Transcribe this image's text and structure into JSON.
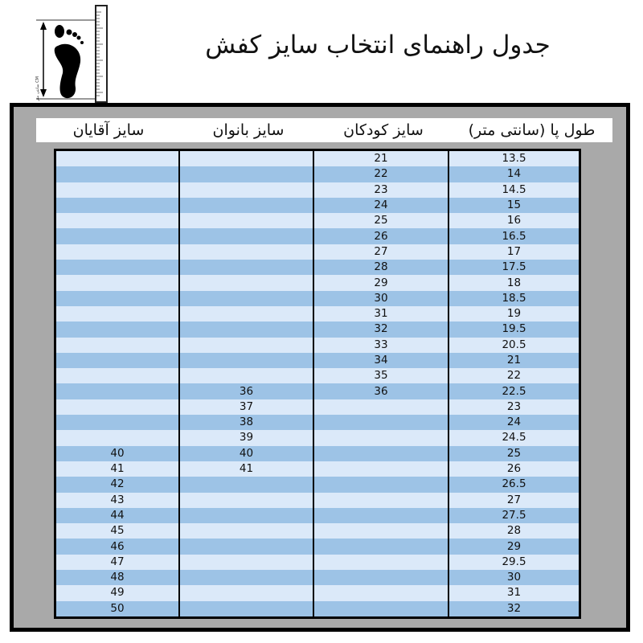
{
  "title": "جدول راهنمای انتخاب سایز کفش",
  "icon": {
    "name": "foot-ruler-icon",
    "label": "CM سانتی متر"
  },
  "colors": {
    "row_light": "#dbe9f9",
    "row_dark": "#9dc3e6",
    "frame": "#a9a9a9"
  },
  "headers": [
    "سایز آقایان",
    "سایز بانوان",
    "سایز کودکان",
    "طول پا (سانتی متر)"
  ],
  "rows": [
    [
      "",
      "",
      "21",
      "13.5"
    ],
    [
      "",
      "",
      "22",
      "14"
    ],
    [
      "",
      "",
      "23",
      "14.5"
    ],
    [
      "",
      "",
      "24",
      "15"
    ],
    [
      "",
      "",
      "25",
      "16"
    ],
    [
      "",
      "",
      "26",
      "16.5"
    ],
    [
      "",
      "",
      "27",
      "17"
    ],
    [
      "",
      "",
      "28",
      "17.5"
    ],
    [
      "",
      "",
      "29",
      "18"
    ],
    [
      "",
      "",
      "30",
      "18.5"
    ],
    [
      "",
      "",
      "31",
      "19"
    ],
    [
      "",
      "",
      "32",
      "19.5"
    ],
    [
      "",
      "",
      "33",
      "20.5"
    ],
    [
      "",
      "",
      "34",
      "21"
    ],
    [
      "",
      "",
      "35",
      "22"
    ],
    [
      "",
      "36",
      "36",
      "22.5"
    ],
    [
      "",
      "37",
      "",
      "23"
    ],
    [
      "",
      "38",
      "",
      "24"
    ],
    [
      "",
      "39",
      "",
      "24.5"
    ],
    [
      "40",
      "40",
      "",
      "25"
    ],
    [
      "41",
      "41",
      "",
      "26"
    ],
    [
      "42",
      "",
      "",
      "26.5"
    ],
    [
      "43",
      "",
      "",
      "27"
    ],
    [
      "44",
      "",
      "",
      "27.5"
    ],
    [
      "45",
      "",
      "",
      "28"
    ],
    [
      "46",
      "",
      "",
      "29"
    ],
    [
      "47",
      "",
      "",
      "29.5"
    ],
    [
      "48",
      "",
      "",
      "30"
    ],
    [
      "49",
      "",
      "",
      "31"
    ],
    [
      "50",
      "",
      "",
      "32"
    ]
  ]
}
